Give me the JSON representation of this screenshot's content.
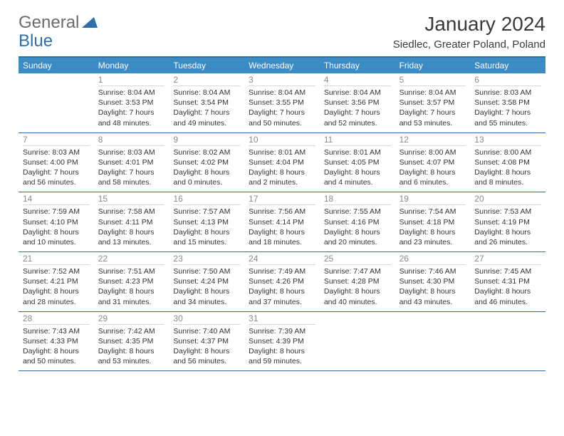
{
  "logo": {
    "general": "General",
    "blue": "Blue"
  },
  "title": "January 2024",
  "location": "Siedlec, Greater Poland, Poland",
  "header_bg": "#3b8bc5",
  "border_color": "#2f6fa9",
  "days_of_week": [
    "Sunday",
    "Monday",
    "Tuesday",
    "Wednesday",
    "Thursday",
    "Friday",
    "Saturday"
  ],
  "weeks": [
    [
      {
        "n": "",
        "sr": "",
        "ss": "",
        "dl": ""
      },
      {
        "n": "1",
        "sr": "Sunrise: 8:04 AM",
        "ss": "Sunset: 3:53 PM",
        "dl": "Daylight: 7 hours and 48 minutes."
      },
      {
        "n": "2",
        "sr": "Sunrise: 8:04 AM",
        "ss": "Sunset: 3:54 PM",
        "dl": "Daylight: 7 hours and 49 minutes."
      },
      {
        "n": "3",
        "sr": "Sunrise: 8:04 AM",
        "ss": "Sunset: 3:55 PM",
        "dl": "Daylight: 7 hours and 50 minutes."
      },
      {
        "n": "4",
        "sr": "Sunrise: 8:04 AM",
        "ss": "Sunset: 3:56 PM",
        "dl": "Daylight: 7 hours and 52 minutes."
      },
      {
        "n": "5",
        "sr": "Sunrise: 8:04 AM",
        "ss": "Sunset: 3:57 PM",
        "dl": "Daylight: 7 hours and 53 minutes."
      },
      {
        "n": "6",
        "sr": "Sunrise: 8:03 AM",
        "ss": "Sunset: 3:58 PM",
        "dl": "Daylight: 7 hours and 55 minutes."
      }
    ],
    [
      {
        "n": "7",
        "sr": "Sunrise: 8:03 AM",
        "ss": "Sunset: 4:00 PM",
        "dl": "Daylight: 7 hours and 56 minutes."
      },
      {
        "n": "8",
        "sr": "Sunrise: 8:03 AM",
        "ss": "Sunset: 4:01 PM",
        "dl": "Daylight: 7 hours and 58 minutes."
      },
      {
        "n": "9",
        "sr": "Sunrise: 8:02 AM",
        "ss": "Sunset: 4:02 PM",
        "dl": "Daylight: 8 hours and 0 minutes."
      },
      {
        "n": "10",
        "sr": "Sunrise: 8:01 AM",
        "ss": "Sunset: 4:04 PM",
        "dl": "Daylight: 8 hours and 2 minutes."
      },
      {
        "n": "11",
        "sr": "Sunrise: 8:01 AM",
        "ss": "Sunset: 4:05 PM",
        "dl": "Daylight: 8 hours and 4 minutes."
      },
      {
        "n": "12",
        "sr": "Sunrise: 8:00 AM",
        "ss": "Sunset: 4:07 PM",
        "dl": "Daylight: 8 hours and 6 minutes."
      },
      {
        "n": "13",
        "sr": "Sunrise: 8:00 AM",
        "ss": "Sunset: 4:08 PM",
        "dl": "Daylight: 8 hours and 8 minutes."
      }
    ],
    [
      {
        "n": "14",
        "sr": "Sunrise: 7:59 AM",
        "ss": "Sunset: 4:10 PM",
        "dl": "Daylight: 8 hours and 10 minutes."
      },
      {
        "n": "15",
        "sr": "Sunrise: 7:58 AM",
        "ss": "Sunset: 4:11 PM",
        "dl": "Daylight: 8 hours and 13 minutes."
      },
      {
        "n": "16",
        "sr": "Sunrise: 7:57 AM",
        "ss": "Sunset: 4:13 PM",
        "dl": "Daylight: 8 hours and 15 minutes."
      },
      {
        "n": "17",
        "sr": "Sunrise: 7:56 AM",
        "ss": "Sunset: 4:14 PM",
        "dl": "Daylight: 8 hours and 18 minutes."
      },
      {
        "n": "18",
        "sr": "Sunrise: 7:55 AM",
        "ss": "Sunset: 4:16 PM",
        "dl": "Daylight: 8 hours and 20 minutes."
      },
      {
        "n": "19",
        "sr": "Sunrise: 7:54 AM",
        "ss": "Sunset: 4:18 PM",
        "dl": "Daylight: 8 hours and 23 minutes."
      },
      {
        "n": "20",
        "sr": "Sunrise: 7:53 AM",
        "ss": "Sunset: 4:19 PM",
        "dl": "Daylight: 8 hours and 26 minutes."
      }
    ],
    [
      {
        "n": "21",
        "sr": "Sunrise: 7:52 AM",
        "ss": "Sunset: 4:21 PM",
        "dl": "Daylight: 8 hours and 28 minutes."
      },
      {
        "n": "22",
        "sr": "Sunrise: 7:51 AM",
        "ss": "Sunset: 4:23 PM",
        "dl": "Daylight: 8 hours and 31 minutes."
      },
      {
        "n": "23",
        "sr": "Sunrise: 7:50 AM",
        "ss": "Sunset: 4:24 PM",
        "dl": "Daylight: 8 hours and 34 minutes."
      },
      {
        "n": "24",
        "sr": "Sunrise: 7:49 AM",
        "ss": "Sunset: 4:26 PM",
        "dl": "Daylight: 8 hours and 37 minutes."
      },
      {
        "n": "25",
        "sr": "Sunrise: 7:47 AM",
        "ss": "Sunset: 4:28 PM",
        "dl": "Daylight: 8 hours and 40 minutes."
      },
      {
        "n": "26",
        "sr": "Sunrise: 7:46 AM",
        "ss": "Sunset: 4:30 PM",
        "dl": "Daylight: 8 hours and 43 minutes."
      },
      {
        "n": "27",
        "sr": "Sunrise: 7:45 AM",
        "ss": "Sunset: 4:31 PM",
        "dl": "Daylight: 8 hours and 46 minutes."
      }
    ],
    [
      {
        "n": "28",
        "sr": "Sunrise: 7:43 AM",
        "ss": "Sunset: 4:33 PM",
        "dl": "Daylight: 8 hours and 50 minutes."
      },
      {
        "n": "29",
        "sr": "Sunrise: 7:42 AM",
        "ss": "Sunset: 4:35 PM",
        "dl": "Daylight: 8 hours and 53 minutes."
      },
      {
        "n": "30",
        "sr": "Sunrise: 7:40 AM",
        "ss": "Sunset: 4:37 PM",
        "dl": "Daylight: 8 hours and 56 minutes."
      },
      {
        "n": "31",
        "sr": "Sunrise: 7:39 AM",
        "ss": "Sunset: 4:39 PM",
        "dl": "Daylight: 8 hours and 59 minutes."
      },
      {
        "n": "",
        "sr": "",
        "ss": "",
        "dl": ""
      },
      {
        "n": "",
        "sr": "",
        "ss": "",
        "dl": ""
      },
      {
        "n": "",
        "sr": "",
        "ss": "",
        "dl": ""
      }
    ]
  ]
}
